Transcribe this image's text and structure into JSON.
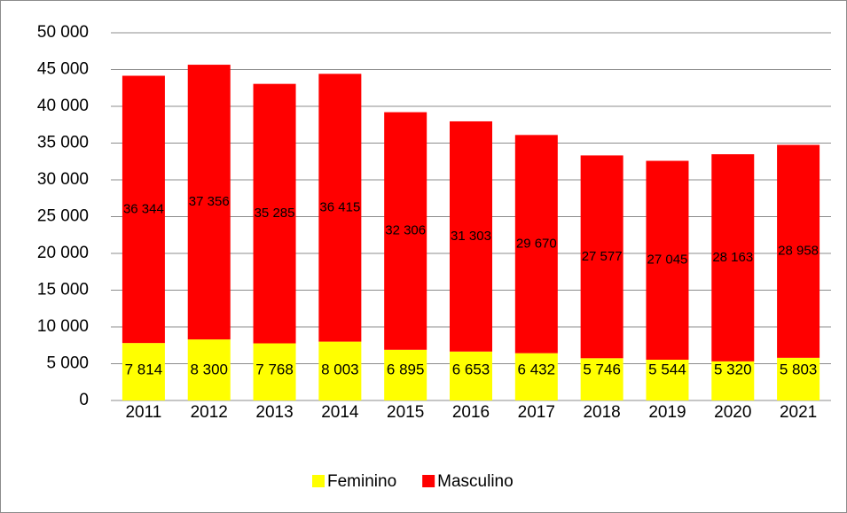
{
  "chart_data": {
    "type": "stacked_bar",
    "categories": [
      "2011",
      "2012",
      "2013",
      "2014",
      "2015",
      "2016",
      "2017",
      "2018",
      "2019",
      "2020",
      "2021"
    ],
    "series": [
      {
        "name": "Feminino",
        "color": "#ffff00",
        "values": [
          7814,
          8300,
          7768,
          8003,
          6895,
          6653,
          6432,
          5746,
          5544,
          5320,
          5803
        ],
        "value_labels": [
          "7 814",
          "8 300",
          "7 768",
          "8 003",
          "6 895",
          "6 653",
          "6 432",
          "5 746",
          "5 544",
          "5 320",
          "5 803"
        ]
      },
      {
        "name": "Masculino",
        "color": "#ff0000",
        "values": [
          36344,
          37356,
          35285,
          36415,
          32306,
          31303,
          29670,
          27577,
          27045,
          28163,
          28958
        ],
        "value_labels": [
          "36 344",
          "37 356",
          "35 285",
          "36 415",
          "32 306",
          "31 303",
          "29 670",
          "27 577",
          "27 045",
          "28 163",
          "28 958"
        ]
      }
    ],
    "ylim": [
      0,
      50000
    ],
    "yticks": [
      0,
      {
        "value": 5000,
        "label": "5 000"
      },
      {
        "value": 10000,
        "label": "10 000"
      },
      {
        "value": 15000,
        "label": "15 000"
      },
      {
        "value": 20000,
        "label": "20 000"
      },
      {
        "value": 25000,
        "label": "25 000"
      },
      {
        "value": 30000,
        "label": "30 000"
      },
      {
        "value": 35000,
        "label": "35 000"
      },
      {
        "value": 40000,
        "label": "40 000"
      },
      {
        "value": 45000,
        "label": "45 000"
      },
      {
        "value": 50000,
        "label": "50 000"
      }
    ],
    "grid": true,
    "legend": "bottom"
  }
}
